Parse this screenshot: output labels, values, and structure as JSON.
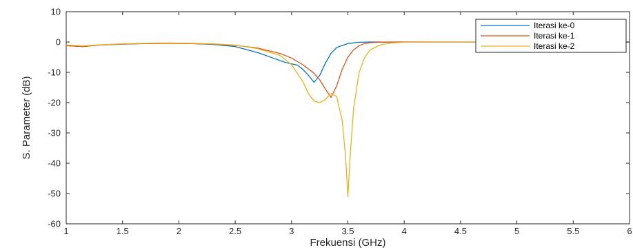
{
  "chart_data": {
    "type": "line",
    "xlabel": "Frekuensi (GHz)",
    "ylabel": "S. Parameter (dB)",
    "xlim": [
      1,
      6
    ],
    "ylim": [
      -60,
      10
    ],
    "xticks": [
      1,
      1.5,
      2,
      2.5,
      3,
      3.5,
      4,
      4.5,
      5,
      5.5,
      6
    ],
    "xtick_labels": [
      "1",
      "1.5",
      "2",
      "2.5",
      "3",
      "3.5",
      "4",
      "4.5",
      "5",
      "5.5",
      "6"
    ],
    "yticks": [
      10,
      0,
      -10,
      -20,
      -30,
      -40,
      -50,
      -60
    ],
    "ytick_labels": [
      "10",
      "0",
      "-10",
      "-20",
      "-30",
      "-40",
      "-50",
      "-60"
    ],
    "grid": false,
    "legend_position": "top-right",
    "series": [
      {
        "name": "Iterasi ke-0",
        "color": "#0072BD",
        "x": [
          1,
          1.15,
          1.3,
          1.5,
          1.7,
          1.9,
          2.1,
          2.3,
          2.5,
          2.7,
          2.85,
          2.95,
          3.0,
          3.05,
          3.1,
          3.15,
          3.2,
          3.25,
          3.3,
          3.35,
          3.4,
          3.5,
          3.6,
          3.7,
          4.0,
          4.5,
          5,
          5.5,
          6
        ],
        "y": [
          -1.2,
          -1.5,
          -1.0,
          -0.7,
          -0.5,
          -0.4,
          -0.5,
          -0.8,
          -1.5,
          -3.5,
          -5.5,
          -6.8,
          -7.2,
          -7.6,
          -9.0,
          -11.0,
          -13.3,
          -11.0,
          -7.0,
          -3.8,
          -1.8,
          -0.5,
          -0.1,
          0,
          0,
          0,
          0,
          0,
          0
        ]
      },
      {
        "name": "Iterasi ke-1",
        "color": "#D95319",
        "x": [
          1,
          1.15,
          1.3,
          1.5,
          1.7,
          1.9,
          2.1,
          2.3,
          2.5,
          2.7,
          2.9,
          3.0,
          3.1,
          3.2,
          3.25,
          3.3,
          3.35,
          3.4,
          3.45,
          3.5,
          3.55,
          3.6,
          3.65,
          3.7,
          3.8,
          4.0,
          4.5,
          5,
          5.5,
          6
        ],
        "y": [
          -1.2,
          -1.5,
          -1.0,
          -0.7,
          -0.5,
          -0.4,
          -0.5,
          -0.7,
          -1.1,
          -2.0,
          -3.8,
          -5.3,
          -7.5,
          -10.3,
          -12.5,
          -15.5,
          -18.3,
          -14.5,
          -9.0,
          -5.0,
          -2.6,
          -1.2,
          -0.5,
          -0.2,
          -0.05,
          0,
          0,
          0,
          0,
          0
        ]
      },
      {
        "name": "Iterasi ke-2",
        "color": "#EDB120",
        "x": [
          1,
          1.15,
          1.3,
          1.5,
          1.7,
          1.9,
          2.1,
          2.3,
          2.5,
          2.7,
          2.9,
          3.0,
          3.1,
          3.15,
          3.2,
          3.25,
          3.3,
          3.35,
          3.4,
          3.45,
          3.48,
          3.5,
          3.52,
          3.55,
          3.6,
          3.65,
          3.7,
          3.8,
          3.9,
          4.0,
          4.5,
          5,
          5.5,
          6
        ],
        "y": [
          -1.0,
          -1.3,
          -0.9,
          -0.6,
          -0.4,
          -0.3,
          -0.4,
          -0.6,
          -1.0,
          -2.2,
          -4.5,
          -7.5,
          -13.0,
          -17.0,
          -19.5,
          -20.0,
          -19.0,
          -17.0,
          -18.0,
          -26.0,
          -38.0,
          -51.0,
          -38.0,
          -22.0,
          -10.0,
          -5.0,
          -2.5,
          -0.8,
          -0.3,
          -0.1,
          0,
          0,
          0,
          0
        ]
      }
    ]
  }
}
